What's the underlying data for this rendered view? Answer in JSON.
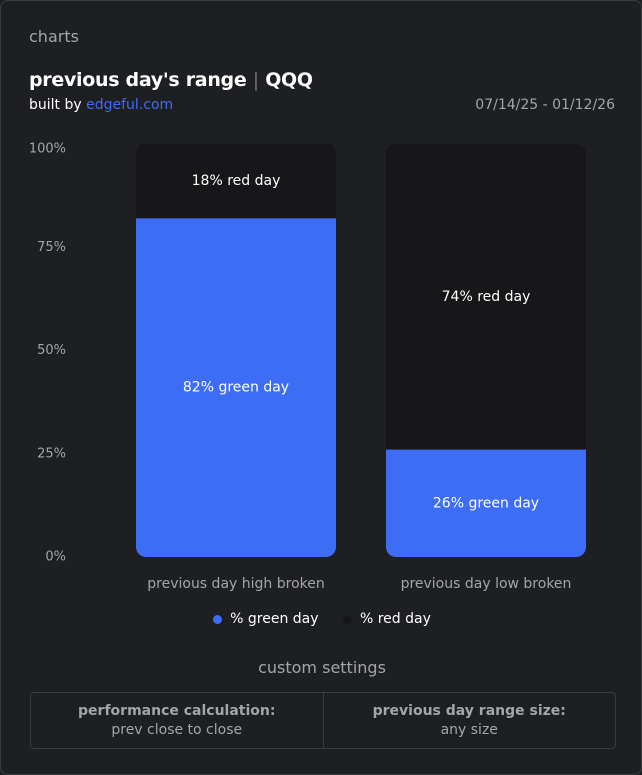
{
  "panel": {
    "title": "charts"
  },
  "header": {
    "title_main": "previous day's range",
    "title_sep": "|",
    "title_ticker": "QQQ",
    "byline_prefix": "built by",
    "byline_link": "edgeful.com",
    "date_range": "07/14/25 - 01/12/26"
  },
  "colors": {
    "green_day": "#3d6cf5",
    "red_day": "#17171a",
    "axis_text": "#a3a5ab"
  },
  "chart_data": {
    "type": "bar",
    "stacked": true,
    "categories": [
      "previous day high broken",
      "previous day low broken"
    ],
    "series": [
      {
        "name": "% green day",
        "values": [
          82,
          26
        ],
        "labels": [
          "82% green day",
          "26% green day"
        ]
      },
      {
        "name": "% red day",
        "values": [
          18,
          74
        ],
        "labels": [
          "18% red day",
          "74% red day"
        ]
      }
    ],
    "yticks": [
      "0%",
      "25%",
      "50%",
      "75%",
      "100%"
    ],
    "ylim": [
      0,
      100
    ],
    "legend": "bottom"
  },
  "settings": {
    "title": "custom settings",
    "items": [
      {
        "label": "performance calculation:",
        "value": "prev close to close"
      },
      {
        "label": "previous day range size:",
        "value": "any size"
      }
    ]
  }
}
